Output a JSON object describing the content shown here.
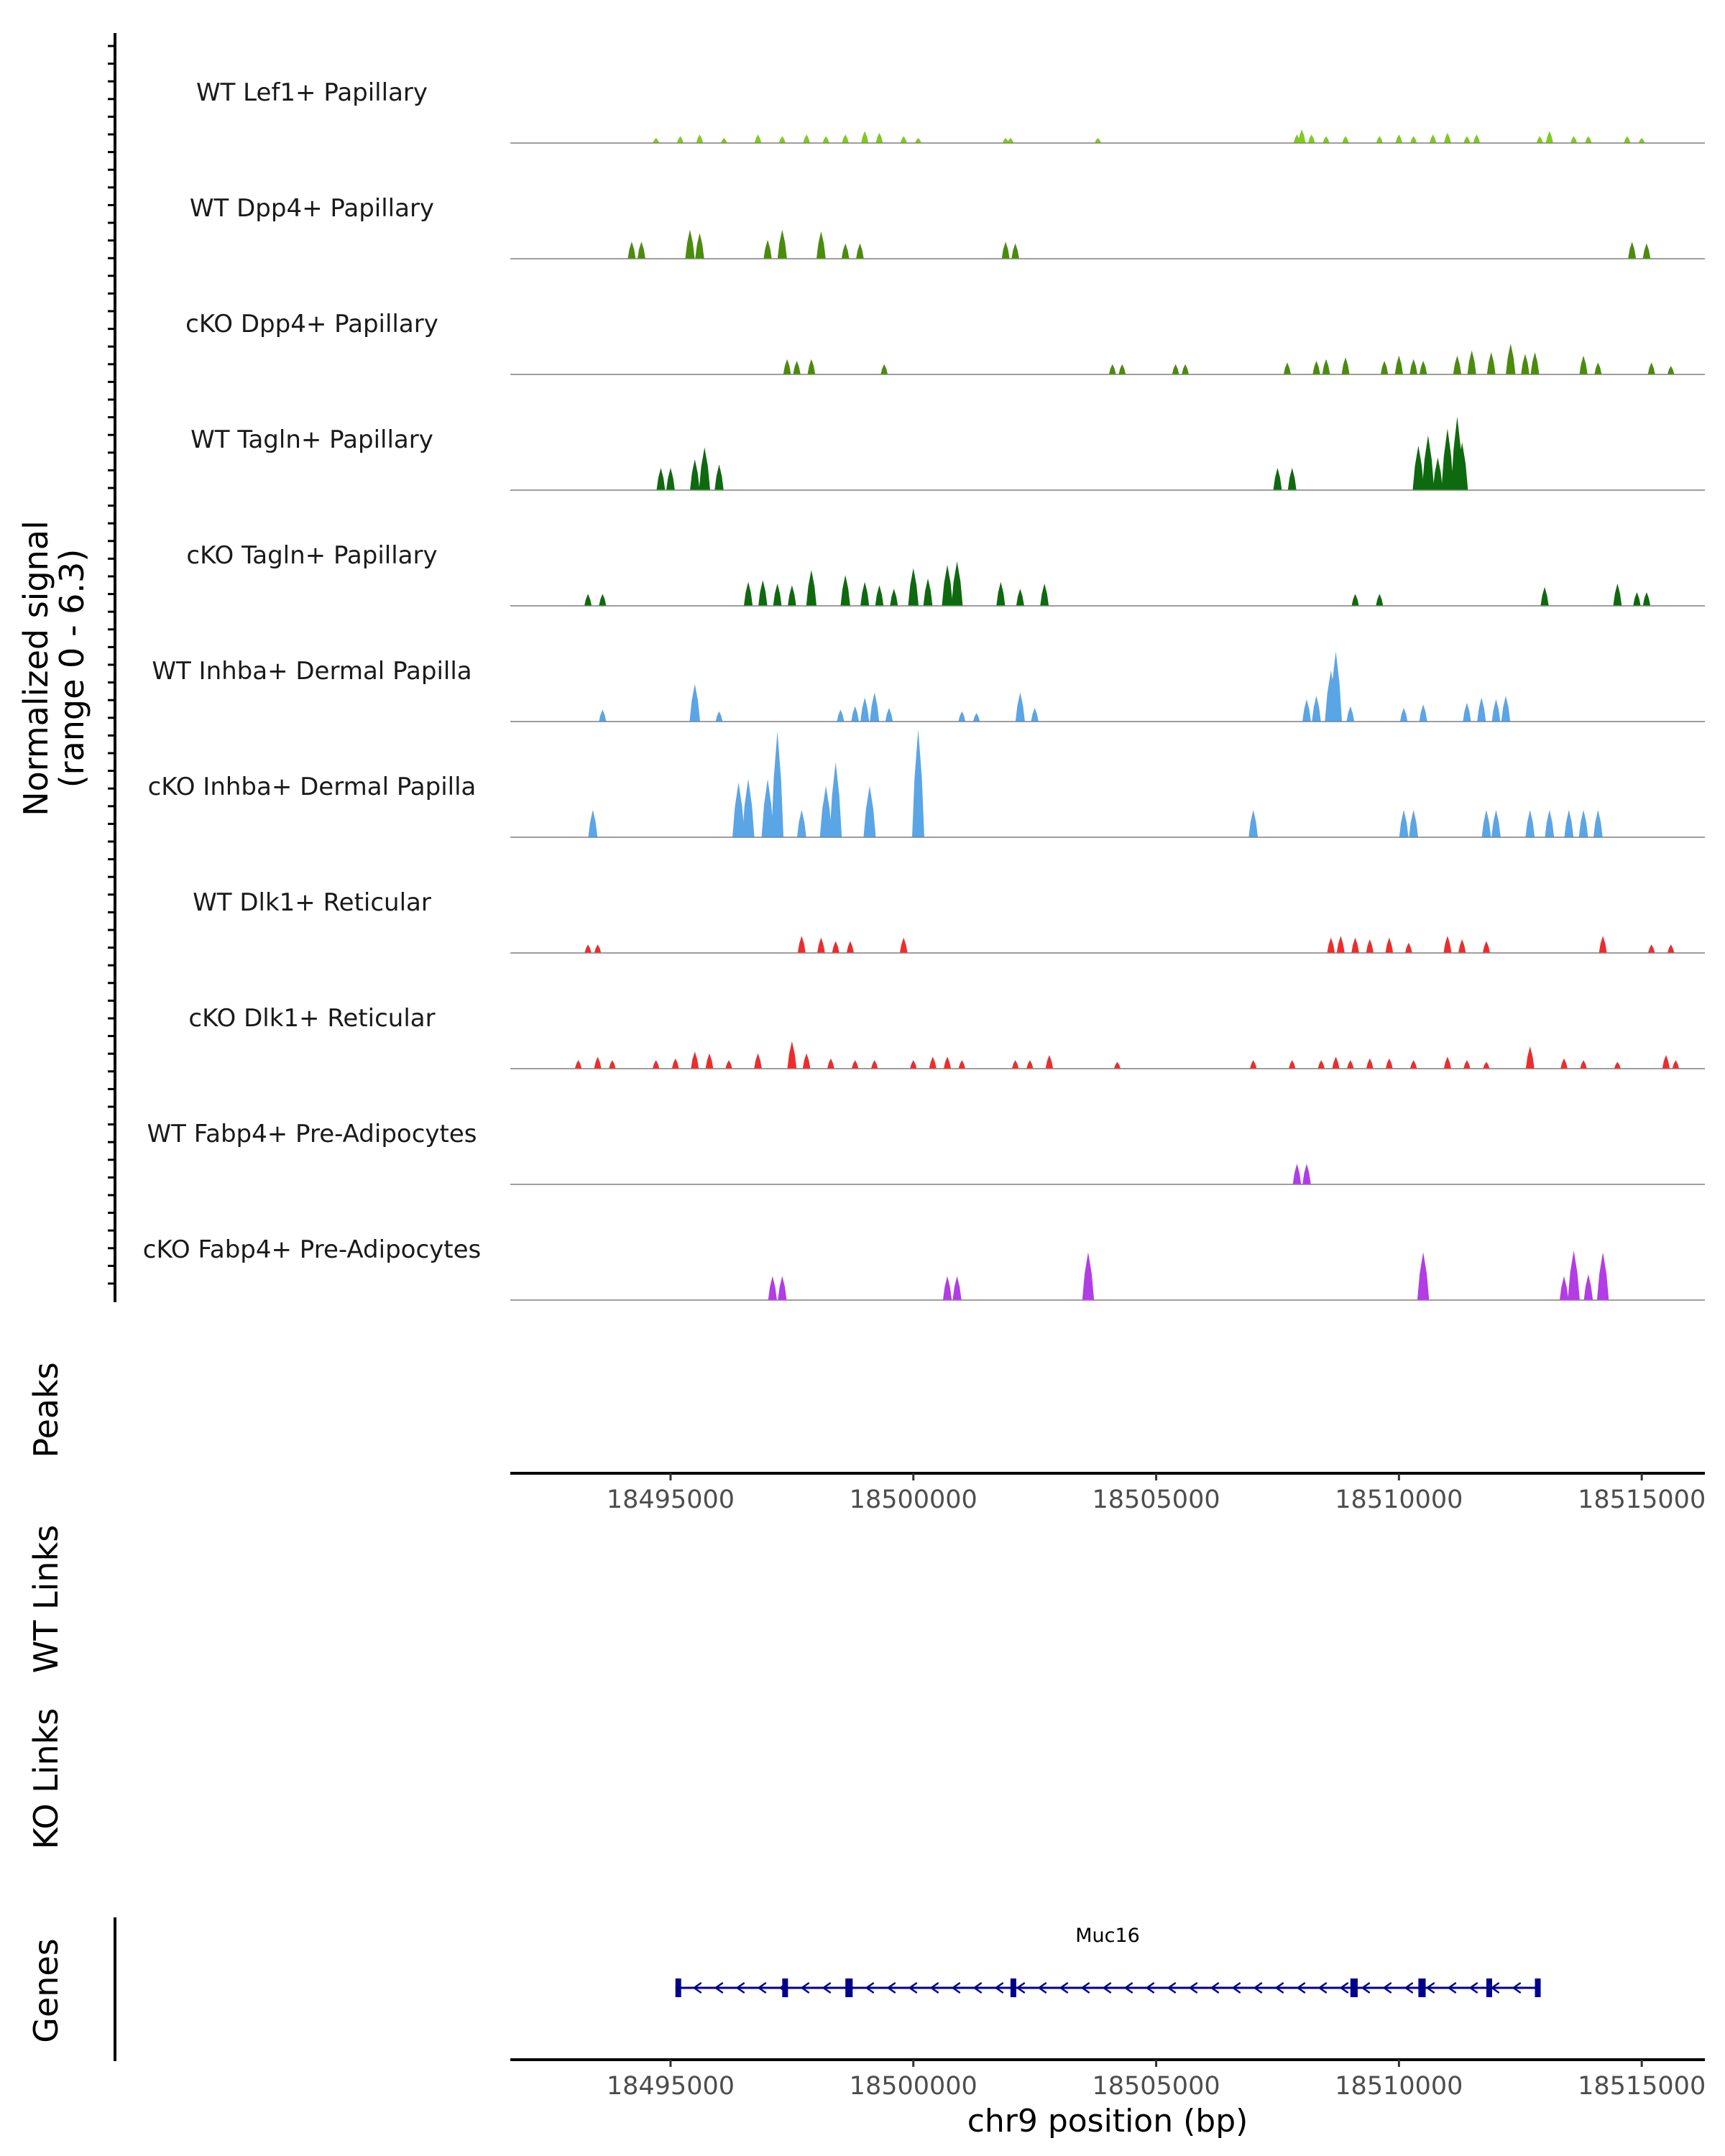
{
  "chart_data": {
    "type": "area",
    "chromosome": "chr9",
    "region": [
      18491700,
      18516300
    ],
    "ylabel_line1": "Normalized signal",
    "ylabel_line2": "(range 0 - 6.3)",
    "signal_range": [
      0,
      6.3
    ],
    "xlabel": "chr9 position (bp)",
    "x_ticks": [
      "18495000",
      "18500000",
      "18505000",
      "18510000",
      "18515000"
    ],
    "x_tick_values": [
      18495000,
      18500000,
      18505000,
      18510000,
      18515000
    ],
    "panels": {
      "peaks": "Peaks",
      "wt_links": "WT Links",
      "ko_links": "KO Links",
      "genes": "Genes"
    },
    "series": [
      {
        "name": "WT Lef1+ Papillary",
        "color": "#7ccd1a",
        "peaks": [
          [
            18494700,
            0.3
          ],
          [
            18495200,
            0.4
          ],
          [
            18495600,
            0.5
          ],
          [
            18496100,
            0.3
          ],
          [
            18496800,
            0.5
          ],
          [
            18497300,
            0.4
          ],
          [
            18497800,
            0.5
          ],
          [
            18498200,
            0.4
          ],
          [
            18498600,
            0.5
          ],
          [
            18499000,
            0.7
          ],
          [
            18499300,
            0.6
          ],
          [
            18499800,
            0.4
          ],
          [
            18500100,
            0.3
          ],
          [
            18501900,
            0.3
          ],
          [
            18502000,
            0.3
          ],
          [
            18503800,
            0.3
          ],
          [
            18507900,
            0.5
          ],
          [
            18508000,
            0.8
          ],
          [
            18508200,
            0.5
          ],
          [
            18508500,
            0.4
          ],
          [
            18508900,
            0.4
          ],
          [
            18509600,
            0.4
          ],
          [
            18510000,
            0.5
          ],
          [
            18510300,
            0.4
          ],
          [
            18510700,
            0.5
          ],
          [
            18511000,
            0.6
          ],
          [
            18511400,
            0.4
          ],
          [
            18511600,
            0.5
          ],
          [
            18512900,
            0.4
          ],
          [
            18513100,
            0.7
          ],
          [
            18513600,
            0.4
          ],
          [
            18513900,
            0.4
          ],
          [
            18514700,
            0.4
          ],
          [
            18515000,
            0.3
          ]
        ]
      },
      {
        "name": "WT Dpp4+ Papillary",
        "color": "#4a8c0b",
        "peaks": [
          [
            18494200,
            1.0
          ],
          [
            18494400,
            1.0
          ],
          [
            18495400,
            1.7
          ],
          [
            18495600,
            1.5
          ],
          [
            18497000,
            1.1
          ],
          [
            18497300,
            1.7
          ],
          [
            18498100,
            1.6
          ],
          [
            18498600,
            0.9
          ],
          [
            18498900,
            0.9
          ],
          [
            18501900,
            1.0
          ],
          [
            18502100,
            0.9
          ],
          [
            18514800,
            1.0
          ],
          [
            18515100,
            0.9
          ]
        ]
      },
      {
        "name": "cKO Dpp4+ Papillary",
        "color": "#4a8c0b",
        "peaks": [
          [
            18497400,
            0.9
          ],
          [
            18497600,
            0.8
          ],
          [
            18497900,
            0.9
          ],
          [
            18499400,
            0.6
          ],
          [
            18504100,
            0.6
          ],
          [
            18504300,
            0.6
          ],
          [
            18505400,
            0.6
          ],
          [
            18505600,
            0.6
          ],
          [
            18507700,
            0.7
          ],
          [
            18508300,
            0.8
          ],
          [
            18508500,
            0.9
          ],
          [
            18508900,
            1.0
          ],
          [
            18509700,
            0.8
          ],
          [
            18510000,
            1.1
          ],
          [
            18510300,
            0.9
          ],
          [
            18510500,
            0.8
          ],
          [
            18511200,
            1.1
          ],
          [
            18511500,
            1.4
          ],
          [
            18511900,
            1.3
          ],
          [
            18512300,
            1.8
          ],
          [
            18512600,
            1.2
          ],
          [
            18512800,
            1.3
          ],
          [
            18513800,
            1.1
          ],
          [
            18514100,
            0.7
          ],
          [
            18515200,
            0.7
          ],
          [
            18515600,
            0.5
          ]
        ]
      },
      {
        "name": "WT Tagln+ Papillary",
        "color": "#0e6a0e",
        "peaks": [
          [
            18494800,
            1.3
          ],
          [
            18495000,
            1.3
          ],
          [
            18495500,
            1.8
          ],
          [
            18495700,
            2.5
          ],
          [
            18496000,
            1.5
          ],
          [
            18507500,
            1.3
          ],
          [
            18507800,
            1.3
          ],
          [
            18510400,
            2.6
          ],
          [
            18510600,
            3.2
          ],
          [
            18510800,
            1.9
          ],
          [
            18511000,
            3.6
          ],
          [
            18511200,
            4.3
          ],
          [
            18511300,
            2.8
          ]
        ]
      },
      {
        "name": "cKO Tagln+ Papillary",
        "color": "#0e6a0e",
        "peaks": [
          [
            18493300,
            0.7
          ],
          [
            18493600,
            0.7
          ],
          [
            18496600,
            1.4
          ],
          [
            18496900,
            1.5
          ],
          [
            18497200,
            1.3
          ],
          [
            18497500,
            1.2
          ],
          [
            18497900,
            2.1
          ],
          [
            18498600,
            1.8
          ],
          [
            18499000,
            1.4
          ],
          [
            18499300,
            1.2
          ],
          [
            18499600,
            1.0
          ],
          [
            18500000,
            2.2
          ],
          [
            18500300,
            1.6
          ],
          [
            18500700,
            2.4
          ],
          [
            18500900,
            2.6
          ],
          [
            18501800,
            1.4
          ],
          [
            18502200,
            1.0
          ],
          [
            18502700,
            1.3
          ],
          [
            18509100,
            0.7
          ],
          [
            18509600,
            0.7
          ],
          [
            18513000,
            1.1
          ],
          [
            18514500,
            1.3
          ],
          [
            18514900,
            0.8
          ],
          [
            18515100,
            0.8
          ]
        ]
      },
      {
        "name": "WT Inhba+ Dermal Papilla",
        "color": "#5aa5e6",
        "peaks": [
          [
            18493600,
            0.7
          ],
          [
            18495500,
            2.2
          ],
          [
            18496000,
            0.6
          ],
          [
            18498500,
            0.7
          ],
          [
            18498800,
            0.9
          ],
          [
            18499000,
            1.4
          ],
          [
            18499200,
            1.7
          ],
          [
            18499500,
            0.8
          ],
          [
            18501000,
            0.6
          ],
          [
            18501300,
            0.5
          ],
          [
            18502200,
            1.7
          ],
          [
            18502500,
            0.8
          ],
          [
            18508100,
            1.3
          ],
          [
            18508300,
            1.5
          ],
          [
            18508600,
            3.0
          ],
          [
            18508700,
            4.1
          ],
          [
            18509000,
            0.9
          ],
          [
            18510100,
            0.8
          ],
          [
            18510500,
            1.0
          ],
          [
            18511400,
            1.1
          ],
          [
            18511700,
            1.4
          ],
          [
            18512000,
            1.3
          ],
          [
            18512200,
            1.5
          ]
        ]
      },
      {
        "name": "cKO Inhba+ Dermal Papilla",
        "color": "#5aa5e6",
        "peaks": [
          [
            18493400,
            1.6
          ],
          [
            18496400,
            3.2
          ],
          [
            18496600,
            3.4
          ],
          [
            18497000,
            3.4
          ],
          [
            18497200,
            6.2
          ],
          [
            18497700,
            1.6
          ],
          [
            18498200,
            3.0
          ],
          [
            18498400,
            4.4
          ],
          [
            18499100,
            3.0
          ],
          [
            18500100,
            6.3
          ],
          [
            18507000,
            1.6
          ],
          [
            18510100,
            1.6
          ],
          [
            18510300,
            1.6
          ],
          [
            18511800,
            1.6
          ],
          [
            18512000,
            1.6
          ],
          [
            18512700,
            1.6
          ],
          [
            18513100,
            1.6
          ],
          [
            18513500,
            1.6
          ],
          [
            18513800,
            1.6
          ],
          [
            18514100,
            1.6
          ]
        ]
      },
      {
        "name": "WT Dlk1+ Reticular",
        "color": "#ee2c2c",
        "peaks": [
          [
            18493300,
            0.5
          ],
          [
            18493500,
            0.5
          ],
          [
            18497700,
            1.0
          ],
          [
            18498100,
            0.9
          ],
          [
            18498400,
            0.7
          ],
          [
            18498700,
            0.7
          ],
          [
            18499800,
            0.9
          ],
          [
            18508600,
            0.9
          ],
          [
            18508800,
            1.0
          ],
          [
            18509100,
            0.9
          ],
          [
            18509400,
            0.8
          ],
          [
            18509800,
            0.9
          ],
          [
            18510200,
            0.6
          ],
          [
            18511000,
            1.0
          ],
          [
            18511300,
            0.8
          ],
          [
            18511800,
            0.7
          ],
          [
            18514200,
            1.0
          ],
          [
            18515200,
            0.5
          ],
          [
            18515600,
            0.5
          ]
        ]
      },
      {
        "name": "cKO Dlk1+ Reticular",
        "color": "#ee2c2c",
        "peaks": [
          [
            18493100,
            0.5
          ],
          [
            18493500,
            0.7
          ],
          [
            18493800,
            0.5
          ],
          [
            18494700,
            0.5
          ],
          [
            18495100,
            0.6
          ],
          [
            18495500,
            1.0
          ],
          [
            18495800,
            0.9
          ],
          [
            18496200,
            0.5
          ],
          [
            18496800,
            0.9
          ],
          [
            18497500,
            1.6
          ],
          [
            18497800,
            0.9
          ],
          [
            18498300,
            0.6
          ],
          [
            18498800,
            0.5
          ],
          [
            18499200,
            0.5
          ],
          [
            18500000,
            0.5
          ],
          [
            18500400,
            0.7
          ],
          [
            18500700,
            0.7
          ],
          [
            18501000,
            0.5
          ],
          [
            18502100,
            0.5
          ],
          [
            18502400,
            0.5
          ],
          [
            18502800,
            0.8
          ],
          [
            18504200,
            0.4
          ],
          [
            18507000,
            0.5
          ],
          [
            18507800,
            0.5
          ],
          [
            18508400,
            0.5
          ],
          [
            18508700,
            0.7
          ],
          [
            18509000,
            0.5
          ],
          [
            18509400,
            0.6
          ],
          [
            18509800,
            0.6
          ],
          [
            18510300,
            0.5
          ],
          [
            18511000,
            0.7
          ],
          [
            18511400,
            0.5
          ],
          [
            18511800,
            0.4
          ],
          [
            18512700,
            1.3
          ],
          [
            18513400,
            0.6
          ],
          [
            18513800,
            0.5
          ],
          [
            18514500,
            0.4
          ],
          [
            18515500,
            0.8
          ],
          [
            18515700,
            0.5
          ]
        ]
      },
      {
        "name": "WT Fabp4+ Pre-Adipocytes",
        "color": "#b23ce6",
        "peaks": [
          [
            18507900,
            1.2
          ],
          [
            18508100,
            1.2
          ]
        ]
      },
      {
        "name": "cKO Fabp4+ Pre-Adipocytes",
        "color": "#b23ce6",
        "peaks": [
          [
            18497100,
            1.4
          ],
          [
            18497300,
            1.4
          ],
          [
            18500700,
            1.4
          ],
          [
            18500900,
            1.4
          ],
          [
            18503600,
            2.8
          ],
          [
            18510500,
            2.8
          ],
          [
            18513400,
            1.4
          ],
          [
            18513600,
            2.9
          ],
          [
            18513900,
            1.5
          ],
          [
            18514200,
            2.8
          ]
        ]
      }
    ],
    "genes": [
      {
        "name": "Muc16",
        "color": "#00008b",
        "strand": "-",
        "start": 18495100,
        "end": 18512900,
        "exons": [
          [
            18495100,
            18495200
          ],
          [
            18497300,
            18497350
          ],
          [
            18498600,
            18498750
          ],
          [
            18502000,
            18502050
          ],
          [
            18509000,
            18509150
          ],
          [
            18510400,
            18510550
          ],
          [
            18511800,
            18511850
          ],
          [
            18512800,
            18512900
          ]
        ]
      }
    ]
  }
}
